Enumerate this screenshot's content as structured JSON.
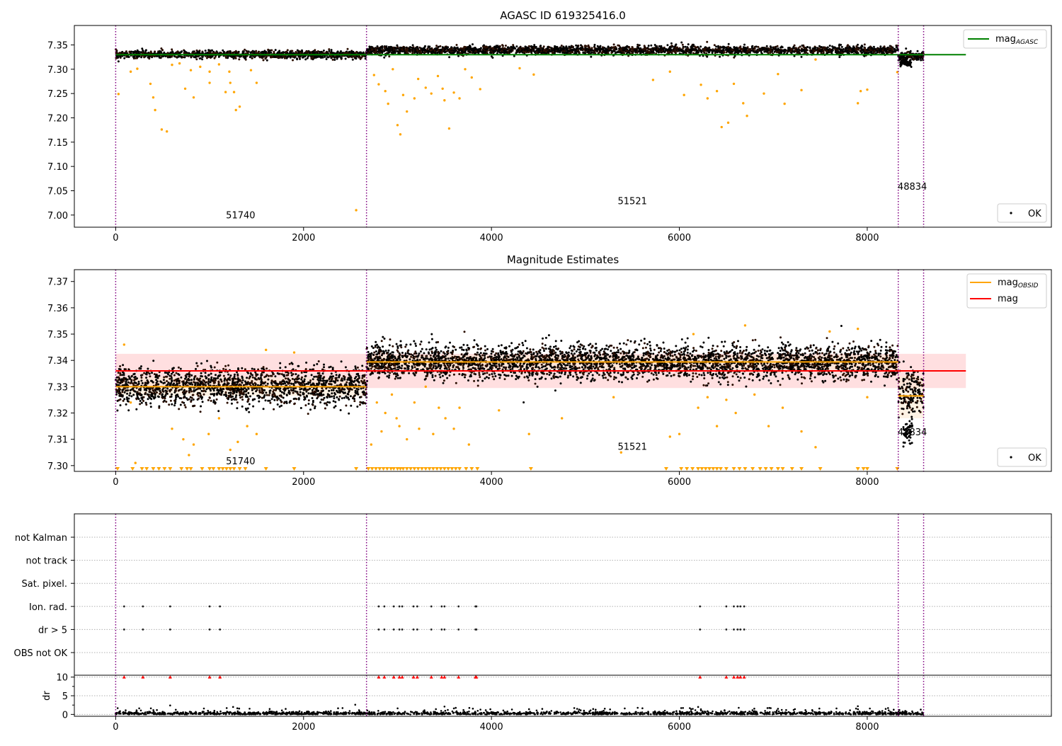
{
  "colors": {
    "ok_points": "#000000",
    "orange": "#ffa500",
    "green": "#008000",
    "red": "#ff0000",
    "red_band": "#ffdfe0",
    "obs_band": "#fde9d2",
    "obsid_line": "#800080",
    "grid": "#b0b0b0"
  },
  "chart_data": [
    {
      "type": "scatter",
      "id": "panel1",
      "title": "AGASC ID 619325416.0",
      "xlim": [
        -440,
        9960
      ],
      "ylim": [
        6.975,
        7.39
      ],
      "xticks": [
        0,
        2000,
        4000,
        6000,
        8000
      ],
      "yticks": [
        7.0,
        7.05,
        7.1,
        7.15,
        7.2,
        7.25,
        7.3,
        7.35
      ],
      "ytick_labels": [
        "7.00",
        "7.05",
        "7.10",
        "7.15",
        "7.20",
        "7.25",
        "7.30",
        "7.35"
      ],
      "obsid_boundaries": [
        0,
        2670,
        8330,
        8600
      ],
      "obsid_labels": [
        {
          "text": "51740",
          "x": 1330,
          "y": 6.993
        },
        {
          "text": "51521",
          "x": 5500,
          "y": 7.022
        },
        {
          "text": "48834",
          "x": 8480,
          "y": 7.052
        }
      ],
      "hlines": [
        {
          "name": "mag$_{AGASC}$",
          "y": 7.33,
          "xrange": [
            0,
            9050
          ],
          "color": "green"
        }
      ],
      "series": [
        {
          "name": "OK",
          "kind": "ok",
          "segments": [
            {
              "x": [
                0,
                2670
              ],
              "center": 7.33,
              "spread": 0.004
            },
            {
              "x": [
                2670,
                8330
              ],
              "center": 7.339,
              "spread": 0.0045
            },
            {
              "x": [
                8330,
                8600
              ],
              "center": 7.326,
              "spread": 0.005
            }
          ]
        },
        {
          "name": "",
          "kind": "outliers",
          "color": "orange",
          "points": [
            [
              30,
              7.249
            ],
            [
              160,
              7.295
            ],
            [
              230,
              7.301
            ],
            [
              370,
              7.27
            ],
            [
              400,
              7.242
            ],
            [
              420,
              7.216
            ],
            [
              490,
              7.176
            ],
            [
              545,
              7.172
            ],
            [
              600,
              7.309
            ],
            [
              680,
              7.312
            ],
            [
              740,
              7.26
            ],
            [
              800,
              7.298
            ],
            [
              830,
              7.242
            ],
            [
              900,
              7.305
            ],
            [
              1000,
              7.295
            ],
            [
              1000,
              7.272
            ],
            [
              1100,
              7.31
            ],
            [
              1170,
              7.253
            ],
            [
              1210,
              7.295
            ],
            [
              1220,
              7.272
            ],
            [
              1260,
              7.253
            ],
            [
              1280,
              7.216
            ],
            [
              1320,
              7.223
            ],
            [
              1440,
              7.298
            ],
            [
              1500,
              7.272
            ],
            [
              2560,
              7.01
            ],
            [
              2750,
              7.288
            ],
            [
              2800,
              7.269
            ],
            [
              2870,
              7.255
            ],
            [
              2900,
              7.229
            ],
            [
              2950,
              7.3
            ],
            [
              3000,
              7.185
            ],
            [
              3030,
              7.166
            ],
            [
              3060,
              7.247
            ],
            [
              3100,
              7.213
            ],
            [
              3180,
              7.24
            ],
            [
              3220,
              7.28
            ],
            [
              3300,
              7.262
            ],
            [
              3360,
              7.25
            ],
            [
              3430,
              7.286
            ],
            [
              3480,
              7.26
            ],
            [
              3500,
              7.236
            ],
            [
              3550,
              7.178
            ],
            [
              3600,
              7.252
            ],
            [
              3660,
              7.24
            ],
            [
              3720,
              7.3
            ],
            [
              3790,
              7.283
            ],
            [
              3880,
              7.259
            ],
            [
              4300,
              7.302
            ],
            [
              4450,
              7.289
            ],
            [
              5720,
              7.278
            ],
            [
              5900,
              7.295
            ],
            [
              6050,
              7.247
            ],
            [
              6230,
              7.268
            ],
            [
              6300,
              7.24
            ],
            [
              6400,
              7.255
            ],
            [
              6450,
              7.181
            ],
            [
              6520,
              7.19
            ],
            [
              6580,
              7.27
            ],
            [
              6680,
              7.23
            ],
            [
              6720,
              7.204
            ],
            [
              6900,
              7.25
            ],
            [
              7050,
              7.29
            ],
            [
              7120,
              7.229
            ],
            [
              7300,
              7.257
            ],
            [
              7450,
              7.32
            ],
            [
              7900,
              7.23
            ],
            [
              7930,
              7.255
            ],
            [
              8000,
              7.258
            ],
            [
              8320,
              7.294
            ]
          ]
        }
      ],
      "legend_lines": [
        "top-right"
      ],
      "legend_points": "bottom-right"
    },
    {
      "type": "scatter",
      "id": "panel2",
      "title": "Magnitude Estimates",
      "xlim": [
        -440,
        9960
      ],
      "ylim": [
        7.2978,
        7.3745
      ],
      "xticks": [
        0,
        2000,
        4000,
        6000,
        8000
      ],
      "yticks": [
        7.3,
        7.31,
        7.32,
        7.33,
        7.34,
        7.35,
        7.36,
        7.37
      ],
      "ytick_labels": [
        "7.30",
        "7.31",
        "7.32",
        "7.33",
        "7.34",
        "7.35",
        "7.36",
        "7.37"
      ],
      "obsid_boundaries": [
        0,
        2670,
        8330,
        8600
      ],
      "obsid_labels": [
        {
          "text": "51740",
          "x": 1330,
          "y": 7.3005
        },
        {
          "text": "51521",
          "x": 5500,
          "y": 7.306
        },
        {
          "text": "48834",
          "x": 8480,
          "y": 7.3115
        }
      ],
      "band": {
        "y": [
          7.3295,
          7.3425
        ],
        "xrange": [
          0,
          9050
        ],
        "color": "red_band"
      },
      "obsid_bands": [
        {
          "x": [
            0,
            2670
          ],
          "y": [
            7.3265,
            7.3335
          ]
        },
        {
          "x": [
            2670,
            8330
          ],
          "y": [
            7.3365,
            7.342
          ]
        },
        {
          "x": [
            8330,
            8600
          ],
          "y": [
            7.318,
            7.334
          ]
        }
      ],
      "hlines": [
        {
          "name": "mag$_{OBSID}$",
          "segments": [
            {
              "x": [
                0,
                2670
              ],
              "y": 7.33
            },
            {
              "x": [
                2670,
                8330
              ],
              "y": 7.3394
            },
            {
              "x": [
                8330,
                8600
              ],
              "y": 7.3265
            }
          ],
          "color": "orange"
        },
        {
          "name": "mag",
          "y": 7.336,
          "xrange": [
            0,
            9050
          ],
          "color": "red"
        }
      ],
      "series": [
        {
          "name": "OK",
          "kind": "ok",
          "segments": [
            {
              "x": [
                0,
                2670
              ],
              "center": 7.33,
              "spread": 0.0035
            },
            {
              "x": [
                2670,
                8330
              ],
              "center": 7.3394,
              "spread": 0.0032
            },
            {
              "x": [
                8330,
                8600
              ],
              "center": 7.328,
              "spread": 0.0045
            }
          ]
        },
        {
          "name": "",
          "kind": "outliers",
          "color": "orange",
          "points": [
            [
              90,
              7.346
            ],
            [
              160,
              7.324
            ],
            [
              210,
              7.301
            ],
            [
              600,
              7.314
            ],
            [
              720,
              7.31
            ],
            [
              780,
              7.304
            ],
            [
              830,
              7.308
            ],
            [
              990,
              7.312
            ],
            [
              1100,
              7.318
            ],
            [
              1220,
              7.306
            ],
            [
              1300,
              7.309
            ],
            [
              1400,
              7.315
            ],
            [
              1500,
              7.312
            ],
            [
              1600,
              7.344
            ],
            [
              1900,
              7.343
            ],
            [
              2720,
              7.308
            ],
            [
              2780,
              7.324
            ],
            [
              2830,
              7.313
            ],
            [
              2870,
              7.32
            ],
            [
              2940,
              7.327
            ],
            [
              2990,
              7.318
            ],
            [
              3020,
              7.315
            ],
            [
              3100,
              7.31
            ],
            [
              3180,
              7.324
            ],
            [
              3230,
              7.314
            ],
            [
              3300,
              7.33
            ],
            [
              3380,
              7.312
            ],
            [
              3440,
              7.322
            ],
            [
              3510,
              7.318
            ],
            [
              3600,
              7.314
            ],
            [
              3660,
              7.322
            ],
            [
              3760,
              7.308
            ],
            [
              4080,
              7.321
            ],
            [
              4400,
              7.312
            ],
            [
              4750,
              7.318
            ],
            [
              5300,
              7.326
            ],
            [
              5380,
              7.305
            ],
            [
              5900,
              7.311
            ],
            [
              6000,
              7.312
            ],
            [
              6150,
              7.35
            ],
            [
              6200,
              7.322
            ],
            [
              6300,
              7.326
            ],
            [
              6400,
              7.315
            ],
            [
              6500,
              7.325
            ],
            [
              6600,
              7.32
            ],
            [
              6700,
              7.3533
            ],
            [
              6800,
              7.327
            ],
            [
              6950,
              7.315
            ],
            [
              7100,
              7.322
            ],
            [
              7300,
              7.313
            ],
            [
              7450,
              7.307
            ],
            [
              7600,
              7.351
            ],
            [
              7900,
              7.352
            ],
            [
              8000,
              7.326
            ]
          ]
        },
        {
          "name": "",
          "kind": "lower-limits",
          "color": "orange",
          "x": [
            20,
            180,
            280,
            330,
            400,
            460,
            520,
            580,
            700,
            760,
            800,
            920,
            1000,
            1040,
            1100,
            1140,
            1180,
            1220,
            1260,
            1320,
            1380,
            1600,
            1900,
            2560,
            2690,
            2730,
            2770,
            2810,
            2850,
            2890,
            2930,
            2960,
            3000,
            3030,
            3060,
            3100,
            3140,
            3180,
            3220,
            3260,
            3300,
            3340,
            3380,
            3420,
            3460,
            3500,
            3540,
            3580,
            3620,
            3660,
            3730,
            3790,
            3850,
            4420,
            5860,
            6020,
            6080,
            6140,
            6200,
            6240,
            6280,
            6320,
            6360,
            6400,
            6440,
            6500,
            6580,
            6640,
            6700,
            6780,
            6860,
            6920,
            6980,
            7050,
            7100,
            7200,
            7300,
            7500,
            7900,
            7960,
            8000,
            8320
          ]
        }
      ],
      "legend_lines": [
        "top-right"
      ],
      "legend_points": "bottom-right"
    },
    {
      "type": "scatter",
      "id": "panel3",
      "xlim": [
        -440,
        9960
      ],
      "flag_rows": [
        "not Kalman",
        "not track",
        "Sat. pixel.",
        "Ion. rad.",
        "dr > 5",
        "OBS not OK"
      ],
      "flag_points": {
        "Ion. rad.": [
          90,
          290,
          580,
          1000,
          1110,
          2800,
          2860,
          2960,
          3020,
          3050,
          3170,
          3210,
          3360,
          3470,
          3500,
          3650,
          3830,
          3840,
          6220,
          6500,
          6580,
          6620,
          6650,
          6690
        ],
        "dr > 5": [
          90,
          290,
          580,
          1000,
          1110,
          2800,
          2860,
          2960,
          3020,
          3050,
          3170,
          3210,
          3360,
          3470,
          3500,
          3650,
          3830,
          3840,
          6220,
          6500,
          6580,
          6620,
          6650,
          6690
        ]
      },
      "obsid_boundaries": [
        0,
        2670,
        8330,
        8600
      ]
    },
    {
      "type": "scatter",
      "id": "panel4",
      "ylabel": "dr",
      "xlim": [
        -440,
        9960
      ],
      "ylim": [
        -0.5,
        10.5
      ],
      "xticks": [
        0,
        2000,
        4000,
        6000,
        8000
      ],
      "yticks": [
        0,
        5,
        10
      ],
      "ytick_labels": [
        "0",
        "5",
        "10"
      ],
      "obsid_boundaries": [
        0,
        2670,
        8330,
        8600
      ],
      "capped_points": {
        "y": 10,
        "x": [
          90,
          290,
          580,
          1000,
          1110,
          2800,
          2860,
          2960,
          3020,
          3050,
          3170,
          3210,
          3360,
          3470,
          3500,
          3650,
          3830,
          3840,
          6220,
          6500,
          6580,
          6620,
          6650,
          6690
        ]
      },
      "spikes": [
        [
          580,
          2.4
        ],
        [
          1250,
          2.0
        ],
        [
          2550,
          2.6
        ],
        [
          3500,
          2.1
        ],
        [
          6200,
          2.0
        ],
        [
          7900,
          2.2
        ],
        [
          3600,
          1.6
        ],
        [
          4400,
          1.4
        ],
        [
          7050,
          1.5
        ]
      ],
      "base": {
        "xrange": [
          0,
          8600
        ],
        "center": 0.25,
        "spread": 0.25
      }
    }
  ],
  "legend": {
    "panel1_line_label_main": "mag",
    "panel1_line_label_sub": "AGASC",
    "panel1_points_label": "OK",
    "panel2_line1_label_main": "mag",
    "panel2_line1_label_sub": "OBSID",
    "panel2_line2_label": "mag",
    "panel2_points_label": "OK"
  }
}
